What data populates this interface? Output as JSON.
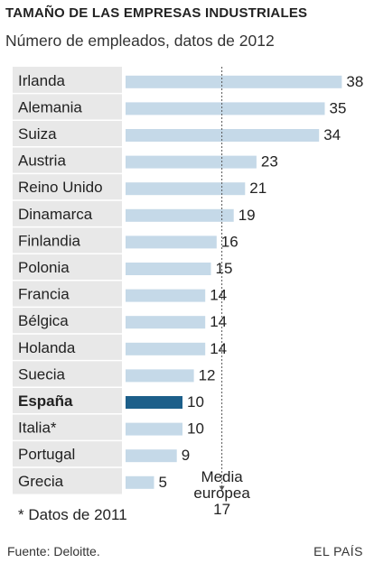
{
  "header": {
    "title": "TAMAÑO DE LAS EMPRESAS INDUSTRIALES",
    "subtitle": "Número de empleados, datos de 2012"
  },
  "footer": {
    "footnote": "* Datos de 2011",
    "source": "Fuente: Deloitte.",
    "brand": "EL PAÍS"
  },
  "chart_data": {
    "type": "bar",
    "orientation": "horizontal",
    "categories": [
      "Irlanda",
      "Alemania",
      "Suiza",
      "Austria",
      "Reino Unido",
      "Dinamarca",
      "Finlandia",
      "Polonia",
      "Francia",
      "Bélgica",
      "Holanda",
      "Suecia",
      "España",
      "Italia*",
      "Portugal",
      "Grecia"
    ],
    "values": [
      38,
      35,
      34,
      23,
      21,
      19,
      16,
      15,
      14,
      14,
      14,
      12,
      10,
      10,
      9,
      5
    ],
    "highlight": "España",
    "reference_line": {
      "value": 17,
      "label_lines": [
        "Media",
        "europea",
        "17"
      ]
    },
    "colors": {
      "bar": "#c5d9e8",
      "highlight": "#1c5f8a",
      "label_bg": "#e8e8e8",
      "reference": "#555555"
    },
    "xlim": [
      0,
      38
    ],
    "grid": false,
    "legend": "none"
  }
}
